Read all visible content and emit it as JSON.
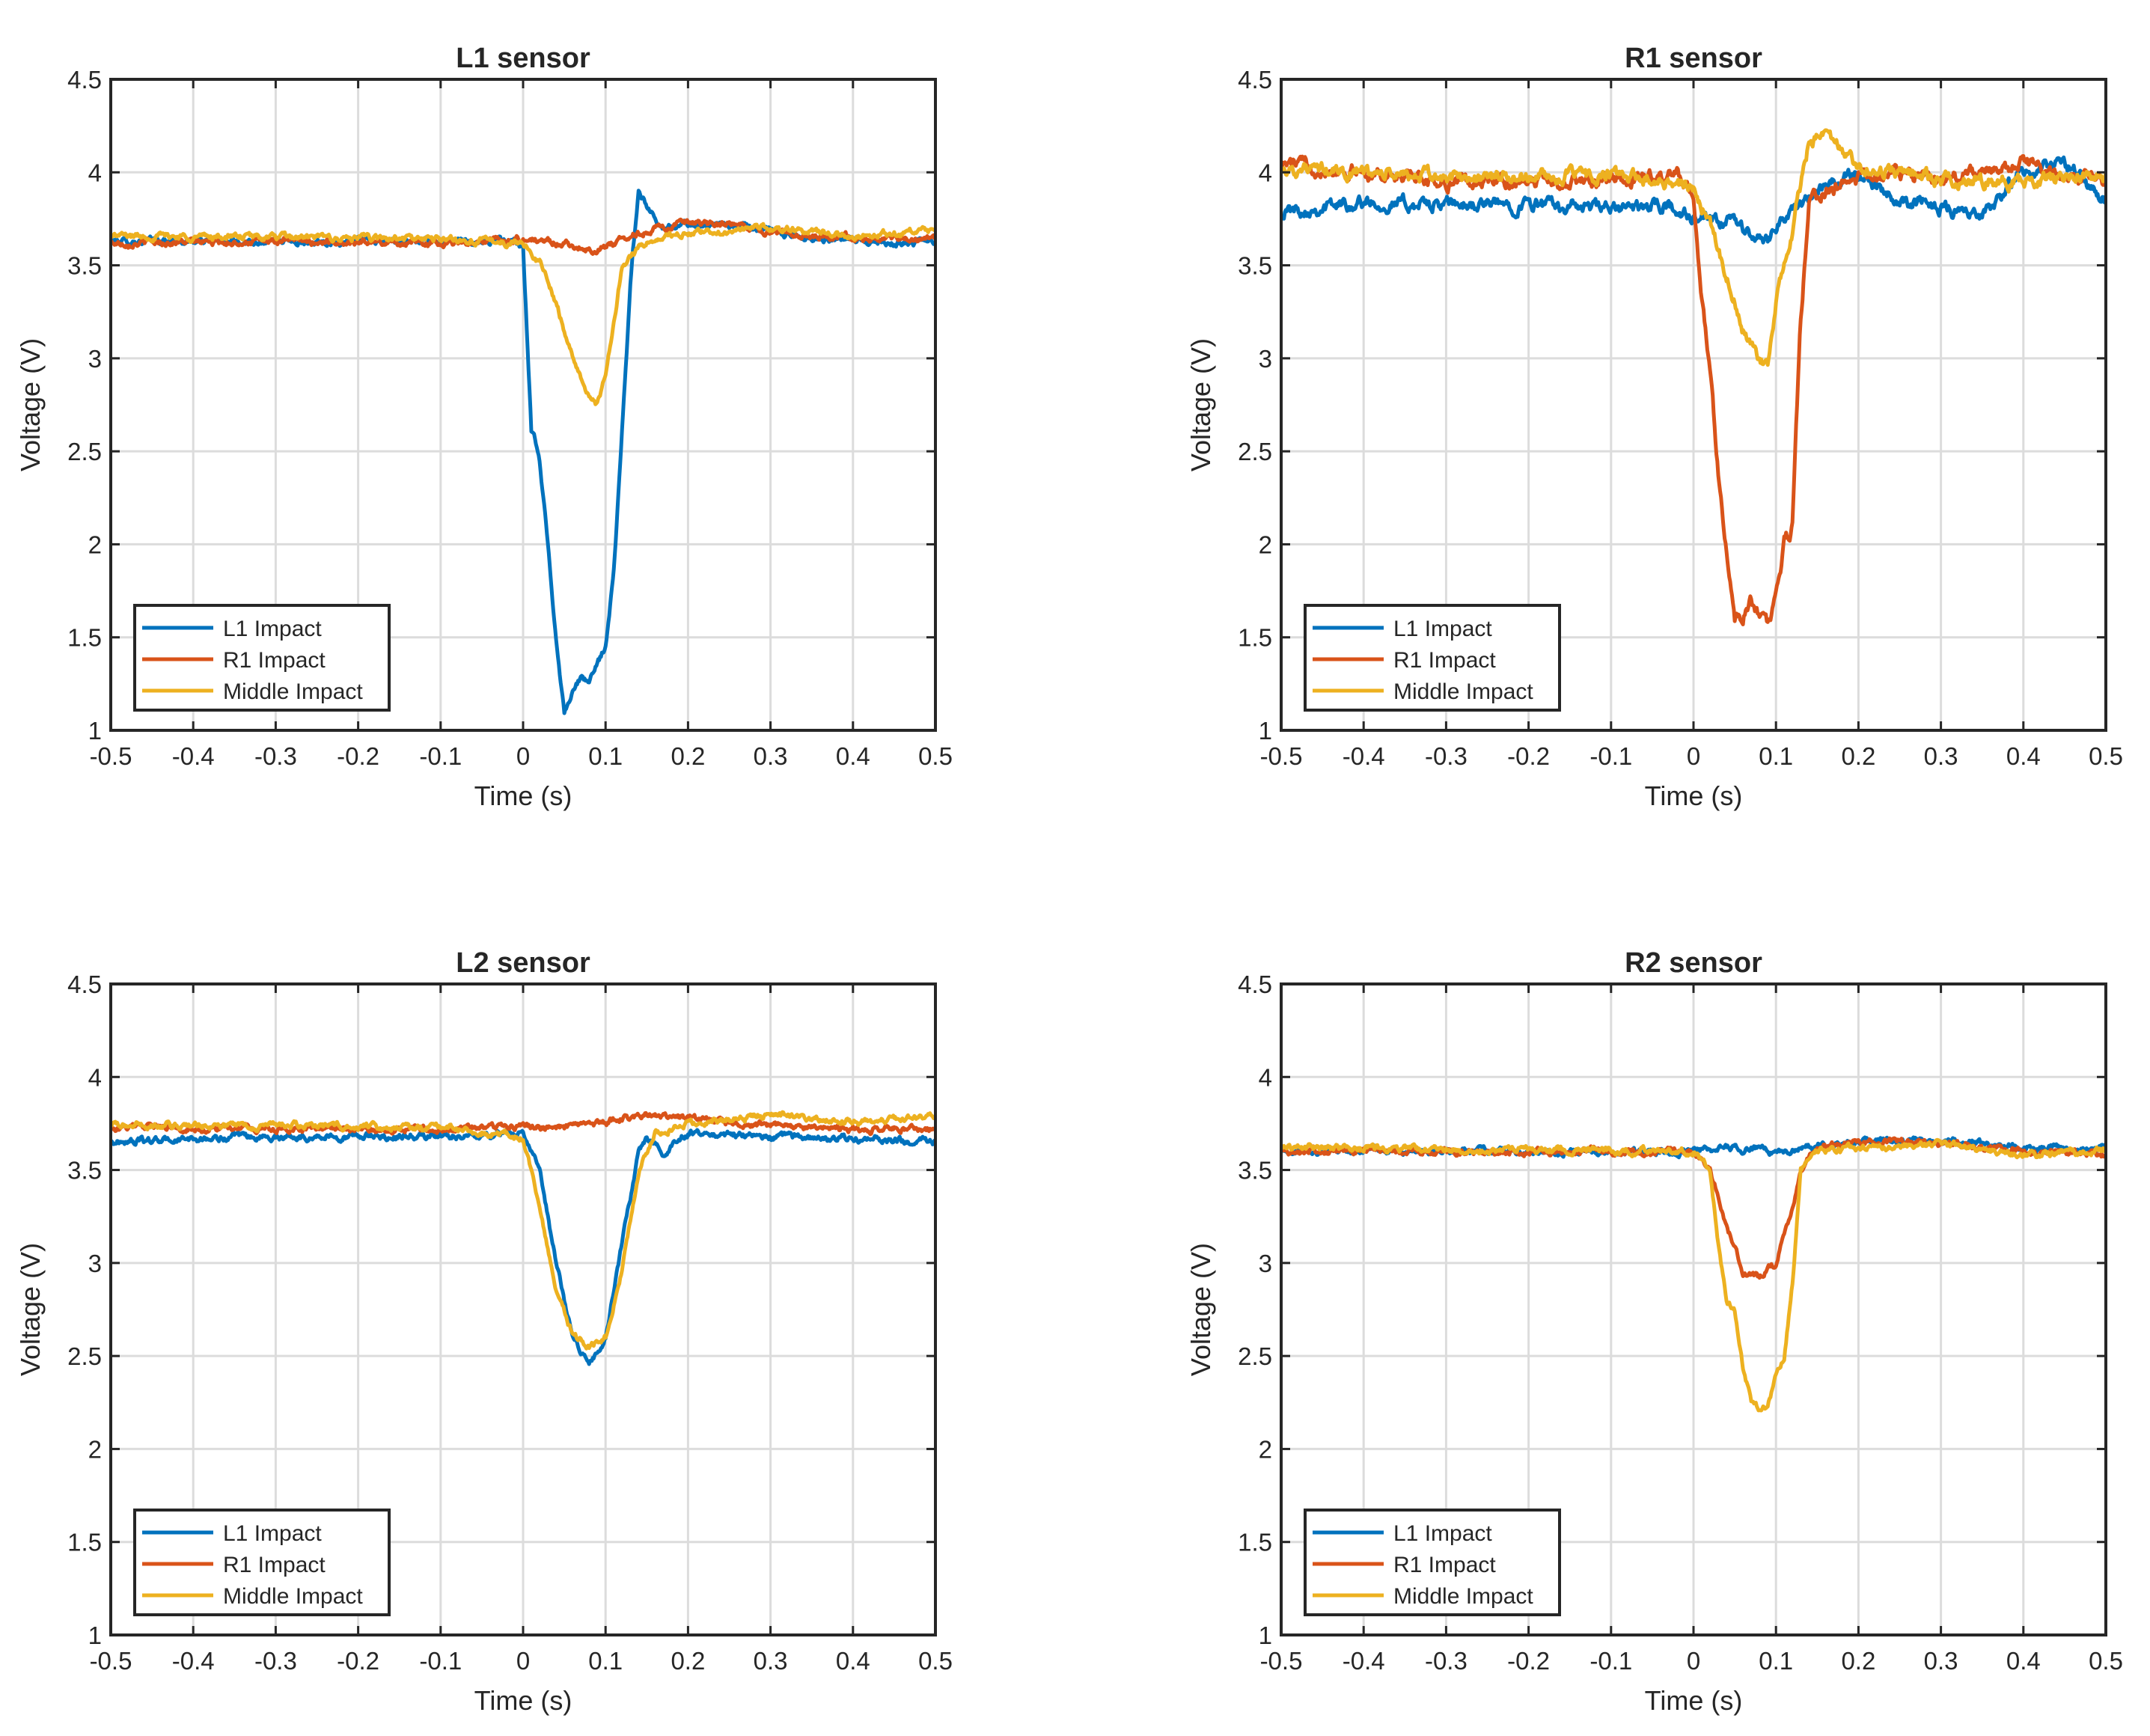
{
  "chart_data": [
    {
      "type": "line",
      "title": "L1 sensor",
      "xlabel": "Time (s)",
      "ylabel": "Voltage (V)",
      "xlim": [
        -0.5,
        0.5
      ],
      "ylim": [
        1,
        4.5
      ],
      "xticks": [
        "-0.5",
        "-0.4",
        "-0.3",
        "-0.2",
        "-0.1",
        "0",
        "0.1",
        "0.2",
        "0.3",
        "0.4",
        "0.5"
      ],
      "yticks": [
        "1",
        "1.5",
        "2",
        "2.5",
        "3",
        "3.5",
        "4",
        "4.5"
      ],
      "grid": true,
      "legend_location": "bottom-left",
      "series": [
        {
          "name": "L1 Impact",
          "color": "#0072BD",
          "x": [
            -0.5,
            -0.2,
            -0.01,
            0.0,
            0.005,
            0.01,
            0.015,
            0.02,
            0.03,
            0.04,
            0.05,
            0.06,
            0.07,
            0.08,
            0.09,
            0.1,
            0.11,
            0.12,
            0.13,
            0.14,
            0.15,
            0.17,
            0.2,
            0.25,
            0.3,
            0.35,
            0.4,
            0.5
          ],
          "y": [
            3.63,
            3.63,
            3.63,
            3.6,
            3.1,
            2.6,
            2.55,
            2.45,
            2.0,
            1.5,
            1.09,
            1.22,
            1.28,
            1.26,
            1.35,
            1.45,
            1.85,
            2.6,
            3.4,
            3.91,
            3.82,
            3.7,
            3.72,
            3.72,
            3.68,
            3.65,
            3.63,
            3.62
          ]
        },
        {
          "name": "R1 Impact",
          "color": "#D95319",
          "x": [
            -0.5,
            -0.3,
            -0.1,
            0.0,
            0.05,
            0.08,
            0.1,
            0.13,
            0.16,
            0.2,
            0.25,
            0.3,
            0.4,
            0.5
          ],
          "y": [
            3.62,
            3.63,
            3.62,
            3.64,
            3.62,
            3.58,
            3.6,
            3.66,
            3.7,
            3.72,
            3.72,
            3.68,
            3.65,
            3.64
          ]
        },
        {
          "name": "Middle Impact",
          "color": "#EDB120",
          "x": [
            -0.5,
            -0.3,
            -0.1,
            0.0,
            0.02,
            0.04,
            0.06,
            0.08,
            0.09,
            0.1,
            0.11,
            0.12,
            0.14,
            0.17,
            0.2,
            0.3,
            0.4,
            0.5
          ],
          "y": [
            3.66,
            3.65,
            3.64,
            3.62,
            3.52,
            3.3,
            3.0,
            2.8,
            2.75,
            2.9,
            3.2,
            3.5,
            3.6,
            3.65,
            3.67,
            3.7,
            3.66,
            3.68
          ]
        }
      ]
    },
    {
      "type": "line",
      "title": "R1 sensor",
      "xlabel": "Time (s)",
      "ylabel": "Voltage (V)",
      "xlim": [
        -0.5,
        0.5
      ],
      "ylim": [
        1,
        4.5
      ],
      "xticks": [
        "-0.5",
        "-0.4",
        "-0.3",
        "-0.2",
        "-0.1",
        "0",
        "0.1",
        "0.2",
        "0.3",
        "0.4",
        "0.5"
      ],
      "yticks": [
        "1",
        "1.5",
        "2",
        "2.5",
        "3",
        "3.5",
        "4",
        "4.5"
      ],
      "grid": true,
      "legend_location": "bottom-left",
      "series": [
        {
          "name": "L1 Impact",
          "color": "#0072BD",
          "x": [
            -0.5,
            -0.4,
            -0.3,
            -0.2,
            -0.1,
            -0.03,
            0.0,
            0.03,
            0.05,
            0.07,
            0.08,
            0.09,
            0.1,
            0.13,
            0.16,
            0.2,
            0.25,
            0.3,
            0.35,
            0.4,
            0.45,
            0.5
          ],
          "y": [
            3.79,
            3.84,
            3.82,
            3.83,
            3.8,
            3.82,
            3.75,
            3.72,
            3.74,
            3.66,
            3.63,
            3.65,
            3.72,
            3.82,
            3.92,
            4.0,
            3.85,
            3.82,
            3.76,
            4.0,
            4.05,
            3.85
          ]
        },
        {
          "name": "R1 Impact",
          "color": "#D95319",
          "x": [
            -0.5,
            -0.3,
            -0.1,
            -0.02,
            0.0,
            0.01,
            0.02,
            0.03,
            0.04,
            0.05,
            0.06,
            0.07,
            0.08,
            0.09,
            0.1,
            0.11,
            0.12,
            0.13,
            0.14,
            0.16,
            0.2,
            0.25,
            0.3,
            0.4,
            0.5
          ],
          "y": [
            4.05,
            3.95,
            3.95,
            3.98,
            3.85,
            3.3,
            2.95,
            2.4,
            1.95,
            1.57,
            1.62,
            1.7,
            1.62,
            1.57,
            1.7,
            2.0,
            2.1,
            3.2,
            3.85,
            3.9,
            3.97,
            4.0,
            3.95,
            4.05,
            3.95
          ]
        },
        {
          "name": "Middle Impact",
          "color": "#EDB120",
          "x": [
            -0.5,
            -0.3,
            -0.1,
            -0.02,
            0.0,
            0.02,
            0.04,
            0.06,
            0.08,
            0.09,
            0.1,
            0.12,
            0.14,
            0.16,
            0.2,
            0.3,
            0.4,
            0.5
          ],
          "y": [
            4.02,
            3.97,
            3.98,
            3.95,
            3.9,
            3.75,
            3.45,
            3.15,
            2.98,
            2.95,
            3.3,
            3.7,
            4.15,
            4.2,
            4.02,
            3.97,
            3.95,
            4.0
          ]
        }
      ]
    },
    {
      "type": "line",
      "title": "L2 sensor",
      "xlabel": "Time (s)",
      "ylabel": "Voltage (V)",
      "xlim": [
        -0.5,
        0.5
      ],
      "ylim": [
        1,
        4.5
      ],
      "xticks": [
        "-0.5",
        "-0.4",
        "-0.3",
        "-0.2",
        "-0.1",
        "0",
        "0.1",
        "0.2",
        "0.3",
        "0.4",
        "0.5"
      ],
      "yticks": [
        "1",
        "1.5",
        "2",
        "2.5",
        "3",
        "3.5",
        "4",
        "4.5"
      ],
      "grid": true,
      "legend_location": "bottom-left",
      "series": [
        {
          "name": "L1 Impact",
          "color": "#0072BD",
          "x": [
            -0.5,
            -0.3,
            -0.1,
            0.0,
            0.02,
            0.04,
            0.06,
            0.08,
            0.1,
            0.12,
            0.14,
            0.15,
            0.17,
            0.2,
            0.3,
            0.4,
            0.5
          ],
          "y": [
            3.65,
            3.68,
            3.68,
            3.7,
            3.5,
            3.0,
            2.6,
            2.46,
            2.6,
            3.1,
            3.6,
            3.68,
            3.6,
            3.7,
            3.68,
            3.67,
            3.65
          ]
        },
        {
          "name": "R1 Impact",
          "color": "#D95319",
          "x": [
            -0.5,
            -0.3,
            -0.1,
            0.0,
            0.05,
            0.1,
            0.15,
            0.2,
            0.25,
            0.3,
            0.4,
            0.5
          ],
          "y": [
            3.73,
            3.72,
            3.72,
            3.74,
            3.72,
            3.76,
            3.8,
            3.78,
            3.76,
            3.74,
            3.72,
            3.72
          ]
        },
        {
          "name": "Middle Impact",
          "color": "#EDB120",
          "x": [
            -0.5,
            -0.3,
            -0.1,
            0.0,
            0.02,
            0.04,
            0.06,
            0.08,
            0.1,
            0.12,
            0.14,
            0.16,
            0.2,
            0.3,
            0.4,
            0.5
          ],
          "y": [
            3.74,
            3.74,
            3.73,
            3.68,
            3.3,
            2.85,
            2.62,
            2.55,
            2.6,
            2.95,
            3.5,
            3.7,
            3.75,
            3.8,
            3.76,
            3.78
          ]
        }
      ]
    },
    {
      "type": "line",
      "title": "R2 sensor",
      "xlabel": "Time (s)",
      "ylabel": "Voltage (V)",
      "xlim": [
        -0.5,
        0.5
      ],
      "ylim": [
        1,
        4.5
      ],
      "xticks": [
        "-0.5",
        "-0.4",
        "-0.3",
        "-0.2",
        "-0.1",
        "0",
        "0.1",
        "0.2",
        "0.3",
        "0.4",
        "0.5"
      ],
      "yticks": [
        "1",
        "1.5",
        "2",
        "2.5",
        "3",
        "3.5",
        "4",
        "4.5"
      ],
      "grid": true,
      "legend_location": "bottom-left",
      "series": [
        {
          "name": "L1 Impact",
          "color": "#0072BD",
          "x": [
            -0.5,
            -0.3,
            -0.1,
            0.0,
            0.05,
            0.1,
            0.15,
            0.2,
            0.3,
            0.4,
            0.5
          ],
          "y": [
            3.6,
            3.6,
            3.6,
            3.6,
            3.62,
            3.6,
            3.63,
            3.65,
            3.66,
            3.62,
            3.61
          ]
        },
        {
          "name": "R1 Impact",
          "color": "#D95319",
          "x": [
            -0.5,
            -0.3,
            -0.1,
            0.0,
            0.02,
            0.04,
            0.06,
            0.08,
            0.1,
            0.12,
            0.13,
            0.15,
            0.2,
            0.3,
            0.4,
            0.5
          ],
          "y": [
            3.6,
            3.6,
            3.6,
            3.6,
            3.5,
            3.2,
            2.95,
            2.92,
            3.0,
            3.3,
            3.5,
            3.62,
            3.65,
            3.65,
            3.6,
            3.58
          ]
        },
        {
          "name": "Middle Impact",
          "color": "#EDB120",
          "x": [
            -0.5,
            -0.3,
            -0.1,
            0.0,
            0.02,
            0.03,
            0.04,
            0.05,
            0.06,
            0.07,
            0.08,
            0.09,
            0.1,
            0.11,
            0.12,
            0.13,
            0.15,
            0.2,
            0.3,
            0.4,
            0.5
          ],
          "y": [
            3.62,
            3.61,
            3.61,
            3.6,
            3.5,
            3.1,
            2.8,
            2.75,
            2.45,
            2.25,
            2.22,
            2.23,
            2.4,
            2.5,
            2.9,
            3.5,
            3.6,
            3.62,
            3.64,
            3.58,
            3.6
          ]
        }
      ]
    }
  ]
}
